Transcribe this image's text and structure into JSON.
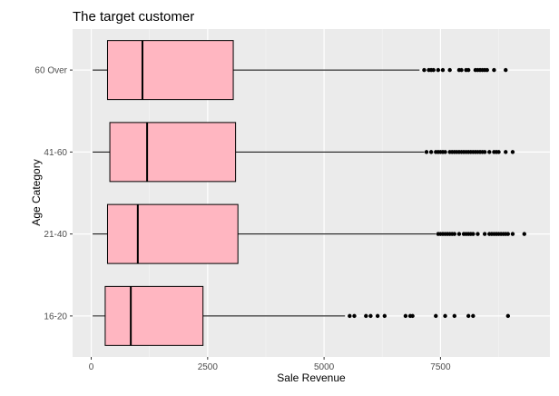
{
  "chart_data": {
    "type": "boxplot",
    "orientation": "horizontal",
    "title": "The target customer",
    "xlabel": "Sale Revenue",
    "ylabel": "Age Category",
    "xlim": [
      -400,
      9850
    ],
    "x_ticks": [
      0,
      2500,
      5000,
      7500
    ],
    "x_tick_labels": [
      "0",
      "2500",
      "5000",
      "7500"
    ],
    "grid": true,
    "legend": "none",
    "colors": {
      "panel": "#ebebeb",
      "grid_major": "#ffffff",
      "grid_minor": "#f5f5f5",
      "box_fill": "#ffb6c1",
      "box_stroke": "#000000",
      "outlier": "#000000",
      "axis_text": "#4d4d4d"
    },
    "categories": [
      "16-20",
      "21-40",
      "41-60",
      "60 Over"
    ],
    "boxes": [
      {
        "category": "16-20",
        "whisker_low": 30,
        "q1": 300,
        "median": 850,
        "q3": 2400,
        "whisker_high": 5450,
        "outliers": [
          5550,
          5650,
          5900,
          6000,
          6150,
          6300,
          6750,
          6850,
          6900,
          7400,
          7600,
          7800,
          8100,
          8200,
          8950
        ]
      },
      {
        "category": "21-40",
        "whisker_low": 30,
        "q1": 350,
        "median": 1000,
        "q3": 3150,
        "whisker_high": 7400,
        "outliers": [
          7450,
          7500,
          7550,
          7600,
          7650,
          7700,
          7750,
          7800,
          7900,
          8000,
          8050,
          8100,
          8150,
          8200,
          8300,
          8450,
          8550,
          8600,
          8650,
          8700,
          8750,
          8800,
          8850,
          8900,
          8950,
          9050,
          9300
        ]
      },
      {
        "category": "41-60",
        "whisker_low": 30,
        "q1": 400,
        "median": 1200,
        "q3": 3100,
        "whisker_high": 7150,
        "outliers": [
          7200,
          7300,
          7400,
          7450,
          7500,
          7550,
          7600,
          7700,
          7750,
          7800,
          7850,
          7900,
          7950,
          8000,
          8050,
          8100,
          8150,
          8200,
          8250,
          8300,
          8350,
          8400,
          8450,
          8550,
          8650,
          8700,
          8750,
          8900,
          9050
        ]
      },
      {
        "category": "60 Over",
        "whisker_low": 30,
        "q1": 350,
        "median": 1100,
        "q3": 3050,
        "whisker_high": 7050,
        "outliers": [
          7150,
          7250,
          7300,
          7350,
          7450,
          7550,
          7700,
          7900,
          7950,
          8050,
          8100,
          8250,
          8300,
          8350,
          8400,
          8450,
          8500,
          8650,
          8900
        ]
      }
    ]
  }
}
